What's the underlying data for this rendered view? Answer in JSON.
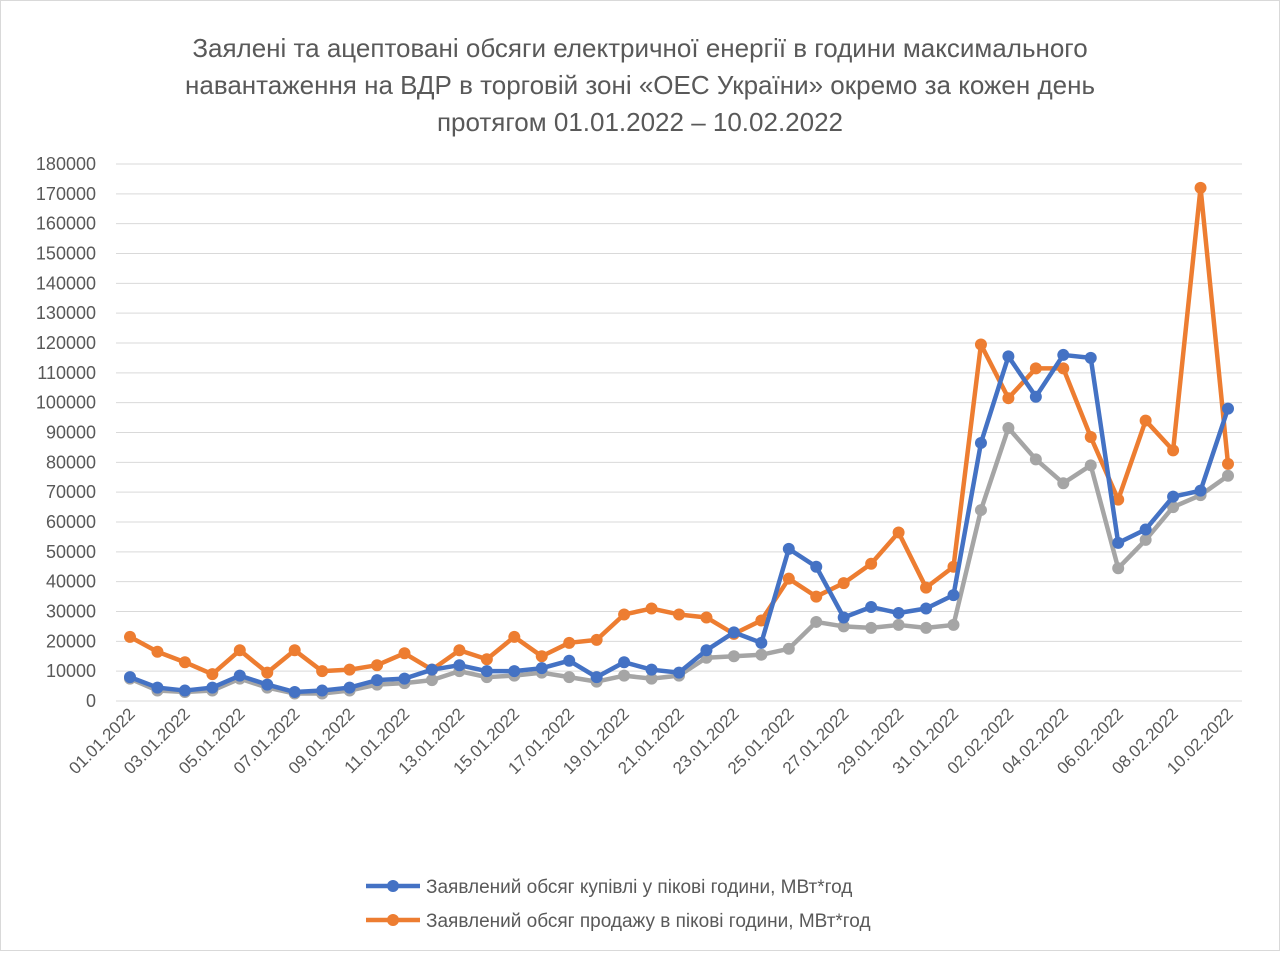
{
  "chart_data": {
    "type": "line",
    "title": "Заялені та ацептовані обсяги електричної енергії в години максимального навантаження на ВДР в торговій зоні «ОЕС України» окремо за кожен день протягом 01.01.2022 – 10.02.2022",
    "categories": [
      "01.01.2022",
      null,
      "03.01.2022",
      null,
      "05.01.2022",
      null,
      "07.01.2022",
      null,
      "09.01.2022",
      null,
      "11.01.2022",
      null,
      "13.01.2022",
      null,
      "15.01.2022",
      null,
      "17.01.2022",
      null,
      "19.01.2022",
      null,
      "21.01.2022",
      null,
      "23.01.2022",
      null,
      "25.01.2022",
      null,
      "27.01.2022",
      null,
      "29.01.2022",
      null,
      "31.01.2022",
      null,
      "02.02.2022",
      null,
      "04.02.2022",
      null,
      "06.02.2022",
      null,
      "08.02.2022",
      null,
      "10.02.2022"
    ],
    "series": [
      {
        "name": "Заявлений обсяг купівлі у пікові години, МВт*год",
        "color": "#4472c4",
        "values": [
          8000,
          4500,
          3500,
          4500,
          8500,
          5500,
          3000,
          3500,
          4500,
          7000,
          7500,
          10500,
          12000,
          10000,
          10000,
          11000,
          13500,
          8000,
          13000,
          10500,
          9500,
          17000,
          23000,
          19500,
          51000,
          45000,
          28000,
          31500,
          29500,
          31000,
          35500,
          86500,
          115500,
          102000,
          116000,
          115000,
          53000,
          57500,
          68500,
          70500,
          98000
        ]
      },
      {
        "name": "Заявлений обсяг продажу в пікові години, МВт*год",
        "color": "#ed7d31",
        "values": [
          21500,
          16500,
          13000,
          9000,
          17000,
          9500,
          17000,
          10000,
          10500,
          12000,
          16000,
          10500,
          17000,
          14000,
          21500,
          15000,
          19500,
          20500,
          29000,
          31000,
          29000,
          28000,
          22500,
          27000,
          41000,
          35000,
          39500,
          46000,
          56500,
          38000,
          45000,
          119500,
          101500,
          111500,
          111500,
          88500,
          67500,
          94000,
          84000,
          172000,
          79500
        ]
      },
      {
        "color": "#a5a5a5",
        "values": [
          7500,
          3500,
          3000,
          3500,
          7500,
          4500,
          2500,
          2500,
          3500,
          5500,
          6000,
          7000,
          10000,
          8000,
          8500,
          9500,
          8000,
          6500,
          8500,
          7500,
          8500,
          14500,
          15000,
          15500,
          17500,
          26500,
          25000,
          24500,
          25500,
          24500,
          25500,
          64000,
          91500,
          81000,
          73000,
          79000,
          44500,
          54000,
          65000,
          69000,
          75500
        ]
      }
    ],
    "ylim": [
      0,
      180000
    ],
    "yticks": [
      0,
      10000,
      20000,
      30000,
      40000,
      50000,
      60000,
      70000,
      80000,
      90000,
      100000,
      110000,
      120000,
      130000,
      140000,
      150000,
      160000,
      170000,
      180000
    ],
    "grid": true,
    "legend": "bottom"
  }
}
